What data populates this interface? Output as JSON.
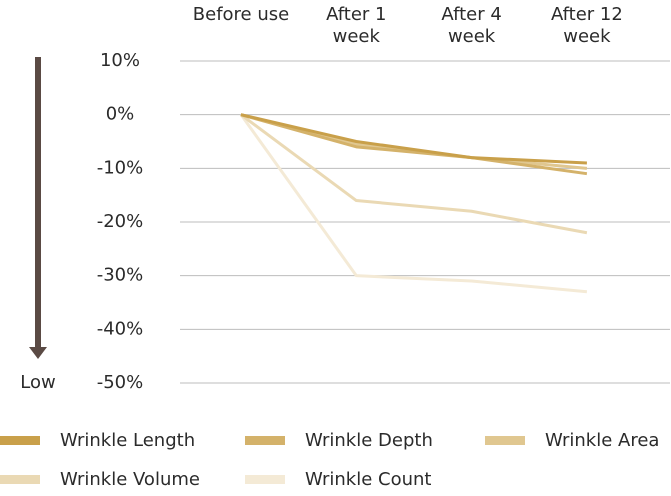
{
  "chart_data": {
    "type": "line",
    "annotation": "Low",
    "categories": [
      "Before use",
      "After 1 week",
      "After 4 week",
      "After 12 week"
    ],
    "ylim": [
      -50,
      10
    ],
    "yticks": [
      {
        "value": 10,
        "label": "10%"
      },
      {
        "value": 0,
        "label": "0%"
      },
      {
        "value": -10,
        "label": "-10%"
      },
      {
        "value": -20,
        "label": "-20%"
      },
      {
        "value": -30,
        "label": "-30%"
      },
      {
        "value": -40,
        "label": "-40%"
      },
      {
        "value": -50,
        "label": "-50%"
      }
    ],
    "grid": true,
    "series": [
      {
        "name": "Wrinkle Length",
        "color": "#c9a04a",
        "values": [
          0,
          -5,
          -8,
          -9
        ]
      },
      {
        "name": "Wrinkle Depth",
        "color": "#d4b26a",
        "values": [
          0,
          -6,
          -8,
          -11
        ]
      },
      {
        "name": "Wrinkle Area",
        "color": "#e0c790",
        "values": [
          0,
          -5.5,
          -8,
          -10
        ]
      },
      {
        "name": "Wrinkle Volume",
        "color": "#ead9b4",
        "values": [
          0,
          -16,
          -18,
          -22
        ]
      },
      {
        "name": "Wrinkle Count",
        "color": "#f4ead6",
        "values": [
          0,
          -30,
          -31,
          -33
        ]
      }
    ]
  }
}
